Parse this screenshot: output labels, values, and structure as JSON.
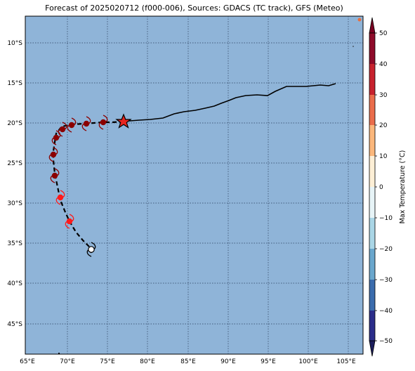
{
  "title": "Forecast of 2025020712 (f000-006), Sources: GDACS (TC track), GFS (Meteo)",
  "map": {
    "ocean_color": "#8fb4d8",
    "lon_ticks": [
      "65°E",
      "70°E",
      "75°E",
      "80°E",
      "85°E",
      "90°E",
      "95°E",
      "100°E",
      "105°E"
    ],
    "lat_ticks": [
      "10°S",
      "15°S",
      "20°S",
      "25°S",
      "30°S",
      "35°S",
      "40°S",
      "45°S"
    ]
  },
  "colorbar": {
    "label": "Max Temperature (°C)",
    "ticks": [
      "50",
      "40",
      "30",
      "20",
      "10",
      "0",
      "−10",
      "−20",
      "−30",
      "−40",
      "−50"
    ]
  },
  "track": {
    "observed_color": "#000000",
    "forecast_color": "#000000",
    "current_position_icon": "star-icon",
    "cyclone_symbol_icon": "cyclone-icon"
  }
}
